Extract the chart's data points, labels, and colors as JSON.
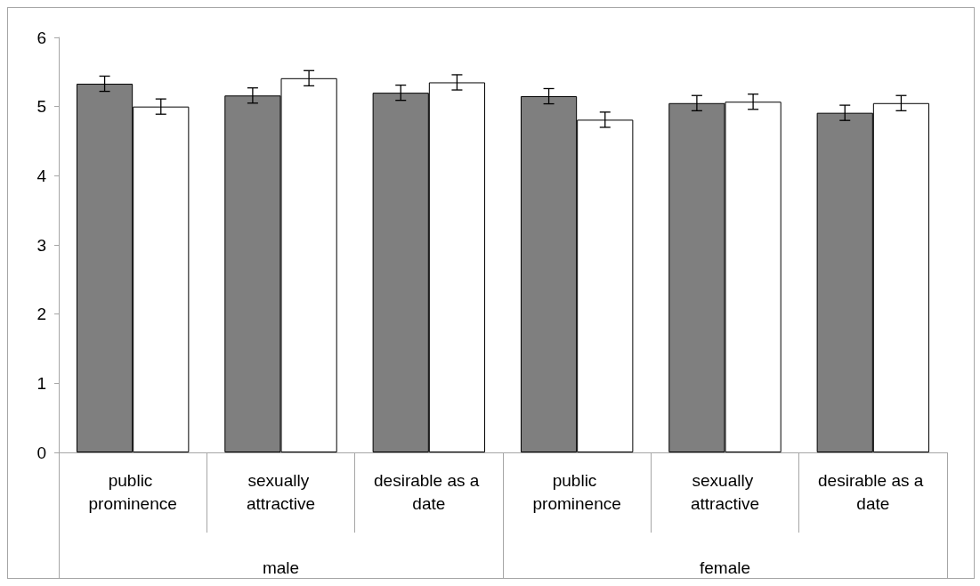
{
  "chart_data": {
    "type": "bar",
    "categories": [
      "public prominence",
      "sexually attractive",
      "desirable as a date",
      "public prominence",
      "sexually attractive",
      "desirable as a date"
    ],
    "series": [
      {
        "color": "#7f7f7f",
        "values": [
          5.33,
          5.16,
          5.2,
          5.15,
          5.05,
          4.91
        ],
        "errors": [
          0.11,
          0.11,
          0.11,
          0.11,
          0.11,
          0.11
        ]
      },
      {
        "color": "#ffffff",
        "values": [
          5.0,
          5.41,
          5.35,
          4.81,
          5.07,
          5.05
        ],
        "errors": [
          0.11,
          0.11,
          0.11,
          0.11,
          0.11,
          0.11
        ]
      }
    ],
    "annotations": [
      "male",
      "female"
    ],
    "ylim": [
      0,
      6
    ],
    "yticks": [
      0,
      1,
      2,
      3,
      4,
      5,
      6
    ],
    "grid": false
  }
}
